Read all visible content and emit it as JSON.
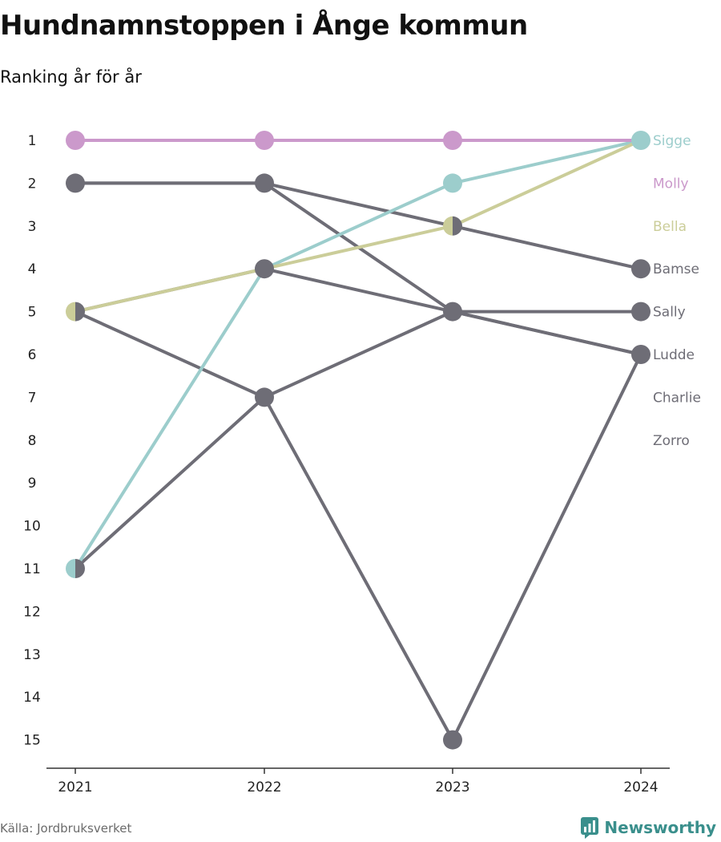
{
  "title": "Hundnamnstoppen i Ånge kommun",
  "subtitle": "Ranking år för år",
  "source": "Källa: Jordbruksverket",
  "brand": "Newsworthy",
  "colors": {
    "grey": "#6e6d76",
    "teal": "#9ccdcc",
    "olive": "#cbcd99",
    "pink": "#cb99cb",
    "brand": "#3a8f8c"
  },
  "chart_data": {
    "type": "line",
    "x": [
      "2021",
      "2022",
      "2023",
      "2024"
    ],
    "y_ticks": [
      "1",
      "2",
      "3",
      "4",
      "5",
      "6",
      "7",
      "8",
      "9",
      "10",
      "11",
      "12",
      "13",
      "14",
      "15"
    ],
    "ylim": [
      1,
      15
    ],
    "y_reversed": true,
    "series": [
      {
        "name": "Sigge",
        "color": "#9ccdcc",
        "values": [
          11,
          4,
          2,
          1
        ]
      },
      {
        "name": "Molly",
        "color": "#cb99cb",
        "values": [
          1,
          1,
          1,
          1
        ]
      },
      {
        "name": "Bella",
        "color": "#cbcd99",
        "values": [
          5,
          4,
          3,
          1
        ]
      },
      {
        "name": "Bamse",
        "color": "#6e6d76",
        "values": [
          2,
          2,
          3,
          4
        ]
      },
      {
        "name": "Sally",
        "color": "#6e6d76",
        "values": [
          11,
          7,
          5,
          5
        ]
      },
      {
        "name": "Ludde",
        "color": "#6e6d76",
        "values": [
          2,
          2,
          5,
          6
        ]
      },
      {
        "name": "Charlie",
        "color": "#6e6d76",
        "values": [
          5,
          4,
          5,
          6
        ]
      },
      {
        "name": "Zorro",
        "color": "#6e6d76",
        "values": [
          5,
          7,
          15,
          6
        ]
      }
    ],
    "end_labels": [
      {
        "name": "Sigge",
        "rank": 1,
        "color": "#9ccdcc"
      },
      {
        "name": "Molly",
        "rank": 2,
        "color": "#cb99cb"
      },
      {
        "name": "Bella",
        "rank": 3,
        "color": "#cbcd99"
      },
      {
        "name": "Bamse",
        "rank": 4,
        "color": "#6e6d76"
      },
      {
        "name": "Sally",
        "rank": 5,
        "color": "#6e6d76"
      },
      {
        "name": "Ludde",
        "rank": 6,
        "color": "#6e6d76"
      },
      {
        "name": "Charlie",
        "rank": 7,
        "color": "#6e6d76"
      },
      {
        "name": "Zorro",
        "rank": 8,
        "color": "#6e6d76"
      }
    ]
  }
}
